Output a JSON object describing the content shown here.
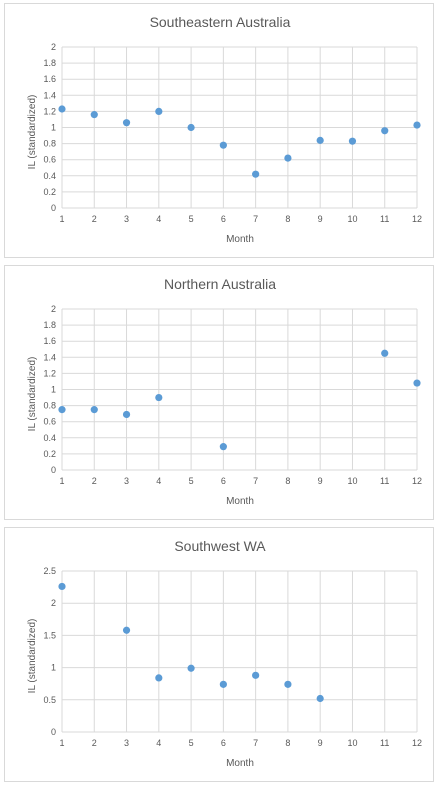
{
  "chart_data": [
    {
      "type": "scatter",
      "title": "Southeastern Australia",
      "xlabel": "Month",
      "ylabel": "IL (standardized)",
      "xlim": [
        1,
        12
      ],
      "ylim": [
        0,
        2
      ],
      "xticks": [
        "1",
        "2",
        "3",
        "4",
        "5",
        "6",
        "7",
        "8",
        "9",
        "10",
        "11",
        "12"
      ],
      "yticks": [
        "0",
        "0.2",
        "0.4",
        "0.6",
        "0.8",
        "1",
        "1.2",
        "1.4",
        "1.6",
        "1.8",
        "2"
      ],
      "grid": true,
      "color": "#5b9bd5",
      "points": [
        {
          "x": 1,
          "y": 1.23
        },
        {
          "x": 2,
          "y": 1.16
        },
        {
          "x": 3,
          "y": 1.06
        },
        {
          "x": 4,
          "y": 1.2
        },
        {
          "x": 5,
          "y": 1.0
        },
        {
          "x": 6,
          "y": 0.78
        },
        {
          "x": 7,
          "y": 0.42
        },
        {
          "x": 8,
          "y": 0.62
        },
        {
          "x": 9,
          "y": 0.84
        },
        {
          "x": 10,
          "y": 0.83
        },
        {
          "x": 11,
          "y": 0.96
        },
        {
          "x": 12,
          "y": 1.03
        }
      ]
    },
    {
      "type": "scatter",
      "title": "Northern Australia",
      "xlabel": "Month",
      "ylabel": "IL (standardized)",
      "xlim": [
        1,
        12
      ],
      "ylim": [
        0,
        2
      ],
      "xticks": [
        "1",
        "2",
        "3",
        "4",
        "5",
        "6",
        "7",
        "8",
        "9",
        "10",
        "11",
        "12"
      ],
      "yticks": [
        "0",
        "0.2",
        "0.4",
        "0.6",
        "0.8",
        "1",
        "1.2",
        "1.4",
        "1.6",
        "1.8",
        "2"
      ],
      "grid": true,
      "color": "#5b9bd5",
      "points": [
        {
          "x": 1,
          "y": 0.75
        },
        {
          "x": 2,
          "y": 0.75
        },
        {
          "x": 3,
          "y": 0.69
        },
        {
          "x": 4,
          "y": 0.9
        },
        {
          "x": 6,
          "y": 0.29
        },
        {
          "x": 11,
          "y": 1.45
        },
        {
          "x": 12,
          "y": 1.08
        }
      ]
    },
    {
      "type": "scatter",
      "title": "Southwest WA",
      "xlabel": "Month",
      "ylabel": "IL (standardized)",
      "xlim": [
        1,
        12
      ],
      "ylim": [
        0,
        2.5
      ],
      "xticks": [
        "1",
        "2",
        "3",
        "4",
        "5",
        "6",
        "7",
        "8",
        "9",
        "10",
        "11",
        "12"
      ],
      "yticks": [
        "0",
        "0.5",
        "1",
        "1.5",
        "2",
        "2.5"
      ],
      "grid": true,
      "color": "#5b9bd5",
      "points": [
        {
          "x": 1,
          "y": 2.26
        },
        {
          "x": 3,
          "y": 1.58
        },
        {
          "x": 4,
          "y": 0.84
        },
        {
          "x": 5,
          "y": 0.99
        },
        {
          "x": 6,
          "y": 0.74
        },
        {
          "x": 7,
          "y": 0.88
        },
        {
          "x": 8,
          "y": 0.74
        },
        {
          "x": 9,
          "y": 0.52
        }
      ]
    }
  ]
}
